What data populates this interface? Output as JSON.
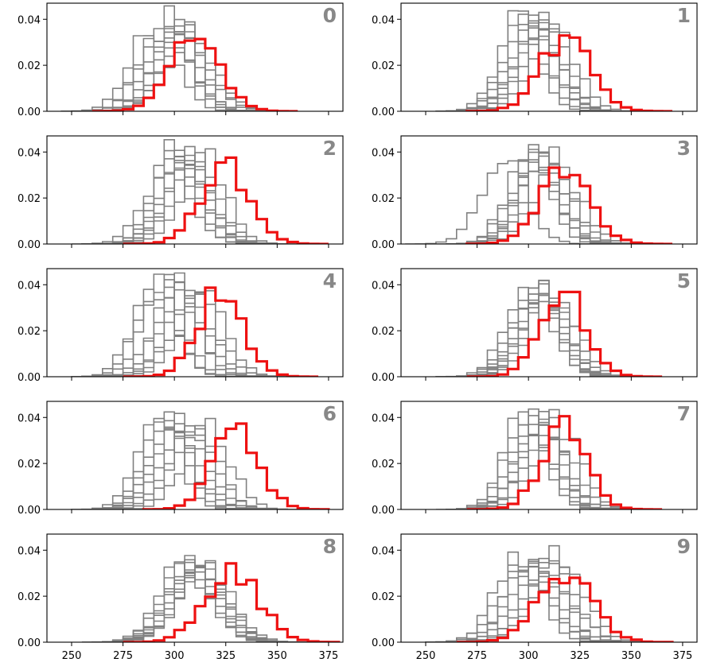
{
  "chart_data": {
    "type": "histogram-grid",
    "description": "10 panels of step histograms; gray = reference distributions, red = highlighted distribution",
    "colors": {
      "reference": "#808080",
      "highlight": "#ee1111",
      "axis": "#000000",
      "label": "#888888"
    },
    "x_ticks": [
      250,
      275,
      300,
      325,
      350,
      375
    ],
    "y_ticks": [
      0.0,
      0.02,
      0.04
    ],
    "y_tick_labels": [
      "0.00",
      "0.02",
      "0.04"
    ],
    "xlim": [
      238,
      382
    ],
    "ylim": [
      0,
      0.047
    ],
    "bin_width": 5,
    "panels": [
      {
        "label": "0",
        "red": [
          310,
          12
        ],
        "grays": [
          [
            290,
            11
          ],
          [
            295,
            11
          ],
          [
            298,
            10
          ],
          [
            300,
            11
          ],
          [
            302,
            10
          ],
          [
            305,
            11
          ],
          [
            306,
            12
          ],
          [
            308,
            12
          ],
          [
            296,
            12
          ]
        ]
      },
      {
        "label": "1",
        "red": [
          318,
          12
        ],
        "grays": [
          [
            295,
            10
          ],
          [
            298,
            10
          ],
          [
            300,
            11
          ],
          [
            302,
            10
          ],
          [
            304,
            11
          ],
          [
            305,
            10
          ],
          [
            306,
            11
          ],
          [
            308,
            10
          ],
          [
            312,
            11
          ]
        ]
      },
      {
        "label": "2",
        "red": [
          325,
          12
        ],
        "grays": [
          [
            297,
            11
          ],
          [
            300,
            10
          ],
          [
            302,
            11
          ],
          [
            304,
            10
          ],
          [
            305,
            11
          ],
          [
            306,
            10
          ],
          [
            308,
            11
          ],
          [
            310,
            11
          ],
          [
            314,
            11
          ]
        ]
      },
      {
        "label": "3",
        "red": [
          318,
          12
        ],
        "grays": [
          [
            288,
            11
          ],
          [
            300,
            10
          ],
          [
            302,
            11
          ],
          [
            304,
            10
          ],
          [
            305,
            11
          ],
          [
            306,
            10
          ],
          [
            308,
            11
          ],
          [
            310,
            11
          ],
          [
            314,
            11
          ]
        ]
      },
      {
        "label": "4",
        "red": [
          322,
          11
        ],
        "grays": [
          [
            290,
            10
          ],
          [
            292,
            10
          ],
          [
            295,
            10
          ],
          [
            300,
            10
          ],
          [
            302,
            10
          ],
          [
            305,
            10
          ],
          [
            307,
            10
          ],
          [
            310,
            11
          ],
          [
            314,
            11
          ]
        ]
      },
      {
        "label": "5",
        "red": [
          317,
          11
        ],
        "grays": [
          [
            300,
            11
          ],
          [
            302,
            11
          ],
          [
            304,
            11
          ],
          [
            305,
            10
          ],
          [
            306,
            11
          ],
          [
            307,
            11
          ],
          [
            308,
            10
          ],
          [
            310,
            11
          ],
          [
            312,
            11
          ]
        ]
      },
      {
        "label": "6",
        "red": [
          330,
          11
        ],
        "grays": [
          [
            292,
            10
          ],
          [
            295,
            10
          ],
          [
            298,
            10
          ],
          [
            300,
            11
          ],
          [
            302,
            11
          ],
          [
            305,
            11
          ],
          [
            308,
            11
          ],
          [
            310,
            11
          ],
          [
            316,
            11
          ]
        ]
      },
      {
        "label": "7",
        "red": [
          317,
          11
        ],
        "grays": [
          [
            298,
            10
          ],
          [
            300,
            10
          ],
          [
            302,
            10
          ],
          [
            304,
            10
          ],
          [
            305,
            10
          ],
          [
            306,
            11
          ],
          [
            308,
            10
          ],
          [
            310,
            11
          ],
          [
            314,
            11
          ]
        ]
      },
      {
        "label": "8",
        "red": [
          328,
          13
        ],
        "grays": [
          [
            305,
            12
          ],
          [
            306,
            12
          ],
          [
            308,
            12
          ],
          [
            309,
            12
          ],
          [
            310,
            12
          ],
          [
            312,
            12
          ],
          [
            313,
            12
          ],
          [
            314,
            12
          ],
          [
            315,
            13
          ]
        ]
      },
      {
        "label": "9",
        "red": [
          318,
          13
        ],
        "grays": [
          [
            295,
            11
          ],
          [
            298,
            12
          ],
          [
            300,
            11
          ],
          [
            302,
            11
          ],
          [
            305,
            12
          ],
          [
            307,
            11
          ],
          [
            310,
            12
          ],
          [
            312,
            11
          ],
          [
            315,
            12
          ]
        ]
      }
    ]
  }
}
